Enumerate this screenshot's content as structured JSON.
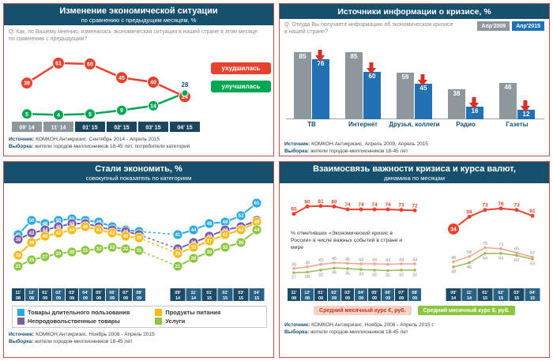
{
  "panels": {
    "situation": {
      "title": "Изменение экономической ситуации",
      "subtitle": "по сравнению с предыдущим месяцем, %",
      "question": "Q: Как, по Вашему мнению, изменилась экономическая ситуация в нашей стране в этом месяце по сравнению с предыдущим?",
      "source_label": "Источник:",
      "source_text": "КОМКОН.Антикризис. Сентябрь 2014 - Апрель 2015",
      "sample_label": "Выборка:",
      "sample_text": "жители городов-миллионников 18-45 лет, потребители категорий"
    },
    "sources_info": {
      "title": "Источники информации о кризисе, %",
      "question": "Q: Откуда Вы получаете информацию об экономическом кризисе в нашей стране?",
      "source_label": "Источник:",
      "source_text": "КОМКОН.Антикризис, Апрель 2009, Апрель 2015",
      "sample_label": "Выборка:",
      "sample_text": "жители городов-миллионников 18-45 лет"
    },
    "economy": {
      "title": "Стали экономить, %",
      "subtitle": "совокупный показатель по категориям",
      "source_label": "Источник:",
      "source_text": "КОМКОН.Антикризис. Ноябрь 2008 - Апрель 2015",
      "sample_label": "Выборка:",
      "sample_text": "жители городов-миллионников 18-45 лет"
    },
    "currency": {
      "title": "Взаимосвязь важности кризиса и курса валют,",
      "subtitle": "динамика по месяцам",
      "note": "% отметивших «Экономический кризис в России» в числе важных событий в стране и мире",
      "legend_eur": "Средний месячный курс €, руб.",
      "legend_usd": "Средний месячный курс $, руб.",
      "source_label": "Источник:",
      "source_text": "КОМКОН.Антикризис. Ноябрь 2008 - Апрель 2015 г.",
      "sample_label": "Выборка:",
      "sample_text": "жители городов-миллионников 18-45 лет"
    }
  },
  "chart_data": [
    {
      "type": "line",
      "title": "Изменение экономической ситуации по сравнению с предыдущим месяцем, %",
      "categories": [
        "09'14",
        "11'14",
        "01'15",
        "02'15",
        "03'15",
        "04'15"
      ],
      "series": [
        {
          "name": "ухудшилась",
          "color": "#e5432d",
          "values": [
            39,
            61,
            60,
            45,
            40,
            24
          ]
        },
        {
          "name": "улучшилась",
          "color": "#00a651",
          "values": [
            5,
            4,
            5,
            9,
            14,
            28
          ]
        }
      ],
      "ylim": [
        0,
        70
      ],
      "legend_position": "right"
    },
    {
      "type": "bar",
      "title": "Источники информации о кризисе, %",
      "categories": [
        "ТВ",
        "Интернет",
        "Друзья, коллеги",
        "Радио",
        "Газеты"
      ],
      "series": [
        {
          "name": "Апр'2009",
          "color": "#8e979c",
          "values": [
            85,
            85,
            59,
            38,
            46
          ]
        },
        {
          "name": "Апр'2015",
          "color": "#2271b3",
          "values": [
            76,
            60,
            45,
            16,
            12
          ]
        }
      ],
      "ylim": [
        0,
        100
      ],
      "annotations": "красные стрелки вниз над столбцами 2015 — снижение по всем источникам"
    },
    {
      "type": "line",
      "title": "Стали экономить, % — совокупный показатель по категориям",
      "x_left": [
        "11'08",
        "12'08",
        "01'09",
        "02'09",
        "03'09",
        "04'09",
        "05'09",
        "06'09",
        "07'09",
        "08'09"
      ],
      "x_right": [
        "09'14",
        "11'14",
        "01'15",
        "02'15",
        "03'15",
        "04'15"
      ],
      "series": [
        {
          "name": "Товары длительного пользования",
          "color": "#29abe2",
          "values_2008_09": [
            41,
            50,
            48,
            50,
            51,
            50,
            49,
            46,
            44,
            43
          ],
          "values_2014_15": [
            41,
            44,
            48,
            49,
            53,
            61
          ]
        },
        {
          "name": "Непродовольственные товары",
          "color": "#7a5ca8",
          "values_2008_09": [
            38,
            42,
            44,
            46,
            48,
            48,
            46,
            44,
            43,
            41
          ],
          "values_2014_15": [
            32,
            36,
            40,
            44,
            46,
            50
          ]
        },
        {
          "name": "Продукты питания",
          "color": "#fdb913",
          "values_2008_09": [
            28,
            36,
            40,
            42,
            44,
            46,
            44,
            42,
            40,
            39
          ],
          "values_2014_15": [
            29,
            33,
            37,
            41,
            44,
            49
          ]
        },
        {
          "name": "Услуги",
          "color": "#8cc63f",
          "values_2008_09": [
            21,
            25,
            27,
            29,
            30,
            31,
            32,
            33,
            32,
            31
          ],
          "values_2014_15": [
            21,
            26,
            30,
            33,
            36,
            44
          ]
        }
      ],
      "ylim": [
        0,
        65
      ],
      "note": "пунктирные линии соединяют периоды 2008-09 и 2014-15"
    },
    {
      "type": "line",
      "title": "Взаимосвязь важности кризиса и курса валют, динамика по месяцам",
      "x_left": [
        "11'08",
        "12'08",
        "01'09",
        "02'09",
        "03'09",
        "04'09",
        "05'09",
        "06'09",
        "07'09",
        "08'09"
      ],
      "x_right": [
        "09'14",
        "11'14",
        "01'15",
        "02'15",
        "03'15",
        "04'15"
      ],
      "series": [
        {
          "name": "% отметивших «Экономический кризис в России» в числе важных событий в стране и мире",
          "color": "#e5432d",
          "unit": "%",
          "values_2008_09": [
            65,
            80,
            81,
            80,
            74,
            74,
            74,
            74,
            73,
            72
          ],
          "values_2014_15": [
            34,
            59,
            73,
            76,
            73,
            61
          ],
          "highlight": "34 в точке 09'14 выделено крупным красным кругом"
        },
        {
          "name": "Средний месячный курс €, руб.",
          "color": "#f2a48c",
          "unit": "руб.",
          "values_2008_09": [
            35,
            38,
            43,
            46,
            45,
            44,
            44,
            43,
            44,
            44
          ],
          "values_2014_15": [
            48,
            58,
            75,
            73,
            65,
            57
          ]
        },
        {
          "name": "Средний месячный курс $, руб.",
          "color": "#9bbb59",
          "unit": "руб.",
          "values_2008_09": [
            27,
            28,
            32,
            36,
            35,
            33,
            32,
            31,
            32,
            32
          ],
          "values_2014_15": [
            38,
            46,
            64,
            64,
            60,
            53
          ]
        }
      ],
      "ylim_percent": [
        0,
        100
      ],
      "ylim_rub": [
        0,
        80
      ]
    }
  ]
}
